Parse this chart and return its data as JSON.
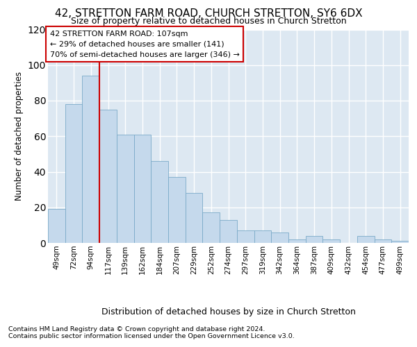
{
  "title": "42, STRETTON FARM ROAD, CHURCH STRETTON, SY6 6DX",
  "subtitle": "Size of property relative to detached houses in Church Stretton",
  "xlabel": "Distribution of detached houses by size in Church Stretton",
  "ylabel": "Number of detached properties",
  "categories": [
    "49sqm",
    "72sqm",
    "94sqm",
    "117sqm",
    "139sqm",
    "162sqm",
    "184sqm",
    "207sqm",
    "229sqm",
    "252sqm",
    "274sqm",
    "297sqm",
    "319sqm",
    "342sqm",
    "364sqm",
    "387sqm",
    "409sqm",
    "432sqm",
    "454sqm",
    "477sqm",
    "499sqm"
  ],
  "bar_heights": [
    19,
    78,
    94,
    75,
    61,
    61,
    46,
    37,
    28,
    17,
    13,
    7,
    7,
    6,
    2,
    4,
    2,
    0,
    4,
    2,
    1
  ],
  "bar_color": "#c5d9ec",
  "bar_edge_color": "#7aaac8",
  "ylim": [
    0,
    120
  ],
  "yticks": [
    0,
    20,
    40,
    60,
    80,
    100,
    120
  ],
  "property_line_x": 3,
  "property_line_color": "#cc0000",
  "annotation_title": "42 STRETTON FARM ROAD: 107sqm",
  "annotation_line1": "← 29% of detached houses are smaller (141)",
  "annotation_line2": "70% of semi-detached houses are larger (346) →",
  "footer1": "Contains HM Land Registry data © Crown copyright and database right 2024.",
  "footer2": "Contains public sector information licensed under the Open Government Licence v3.0.",
  "bg_color": "#dde8f2"
}
